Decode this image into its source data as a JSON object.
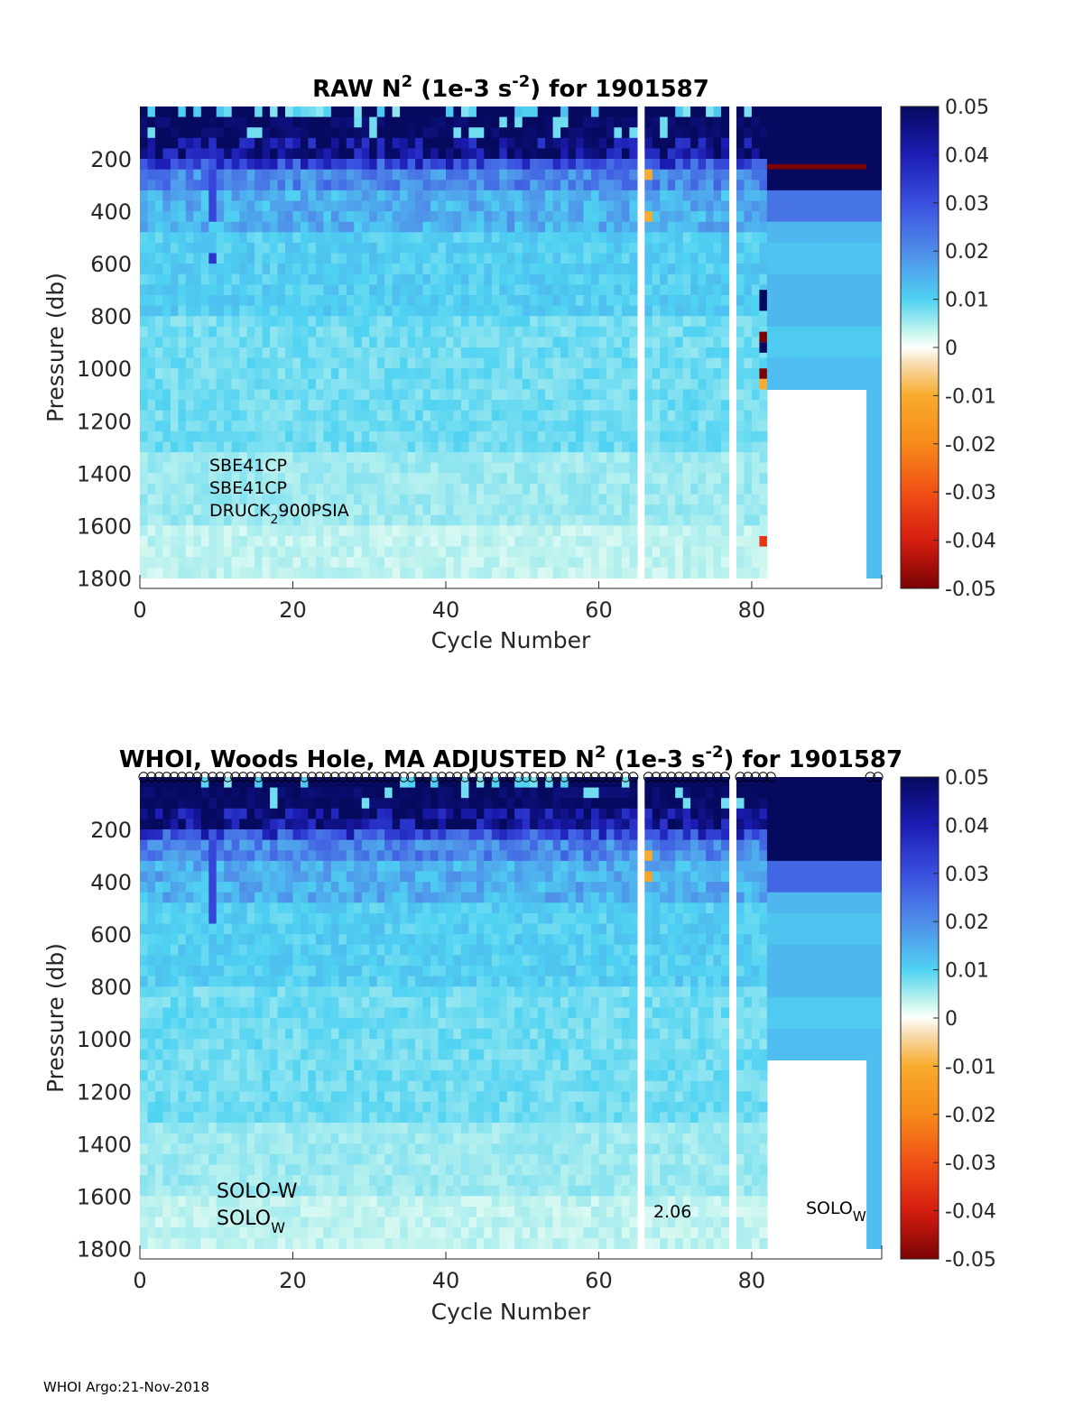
{
  "footer": "WHOI Argo:21-Nov-2018",
  "chart_data": [
    {
      "type": "heatmap",
      "title": {
        "pre": "RAW N",
        "sup1": "2",
        "mid": " (1e-3 s",
        "sup2": "-2",
        "post": ") for 1901587"
      },
      "xlabel": "Cycle Number",
      "ylabel": "Pressure (db)",
      "xlim": [
        0,
        97
      ],
      "ylim": [
        1840,
        0
      ],
      "xticks": [
        "0",
        "20",
        "40",
        "60",
        "80"
      ],
      "yticks": [
        "200",
        "400",
        "600",
        "800",
        "1000",
        "1200",
        "1400",
        "1600",
        "1800"
      ],
      "colorbar": {
        "range": [
          -0.05,
          0.05
        ],
        "ticks": [
          "0.05",
          "0.04",
          "0.03",
          "0.02",
          "0.01",
          "0",
          "-0.01",
          "-0.02",
          "-0.03",
          "-0.04",
          "-0.05"
        ]
      },
      "annotations": {
        "sensor1": "SBE41CP",
        "sensor2": "SBE41CP",
        "sensor3_main": "DRUCK",
        "sensor3_sub": "2",
        "sensor3_rest": "900PSIA"
      },
      "markers": false
    },
    {
      "type": "heatmap",
      "title": {
        "pre": "WHOI, Woods Hole, MA  ADJUSTED N",
        "sup1": "2",
        "mid": " (1e-3 s",
        "sup2": "-2",
        "post": ") for 1901587"
      },
      "xlabel": "Cycle Number",
      "ylabel": "Pressure (db)",
      "xlim": [
        0,
        97
      ],
      "ylim": [
        1840,
        0
      ],
      "xticks": [
        "0",
        "20",
        "40",
        "60",
        "80"
      ],
      "yticks": [
        "200",
        "400",
        "600",
        "800",
        "1000",
        "1200",
        "1400",
        "1600",
        "1800"
      ],
      "colorbar": {
        "range": [
          -0.05,
          0.05
        ],
        "ticks": [
          "0.05",
          "0.04",
          "0.03",
          "0.02",
          "0.01",
          "0",
          "-0.01",
          "-0.02",
          "-0.03",
          "-0.04",
          "-0.05"
        ]
      },
      "annotations": {
        "platform1": "SOLO-W",
        "platform2_main": "SOLO",
        "platform2_sub": "W",
        "version": "2.06",
        "platform3_main": "SOLO",
        "platform3_sub": "W"
      },
      "markers": true
    }
  ]
}
